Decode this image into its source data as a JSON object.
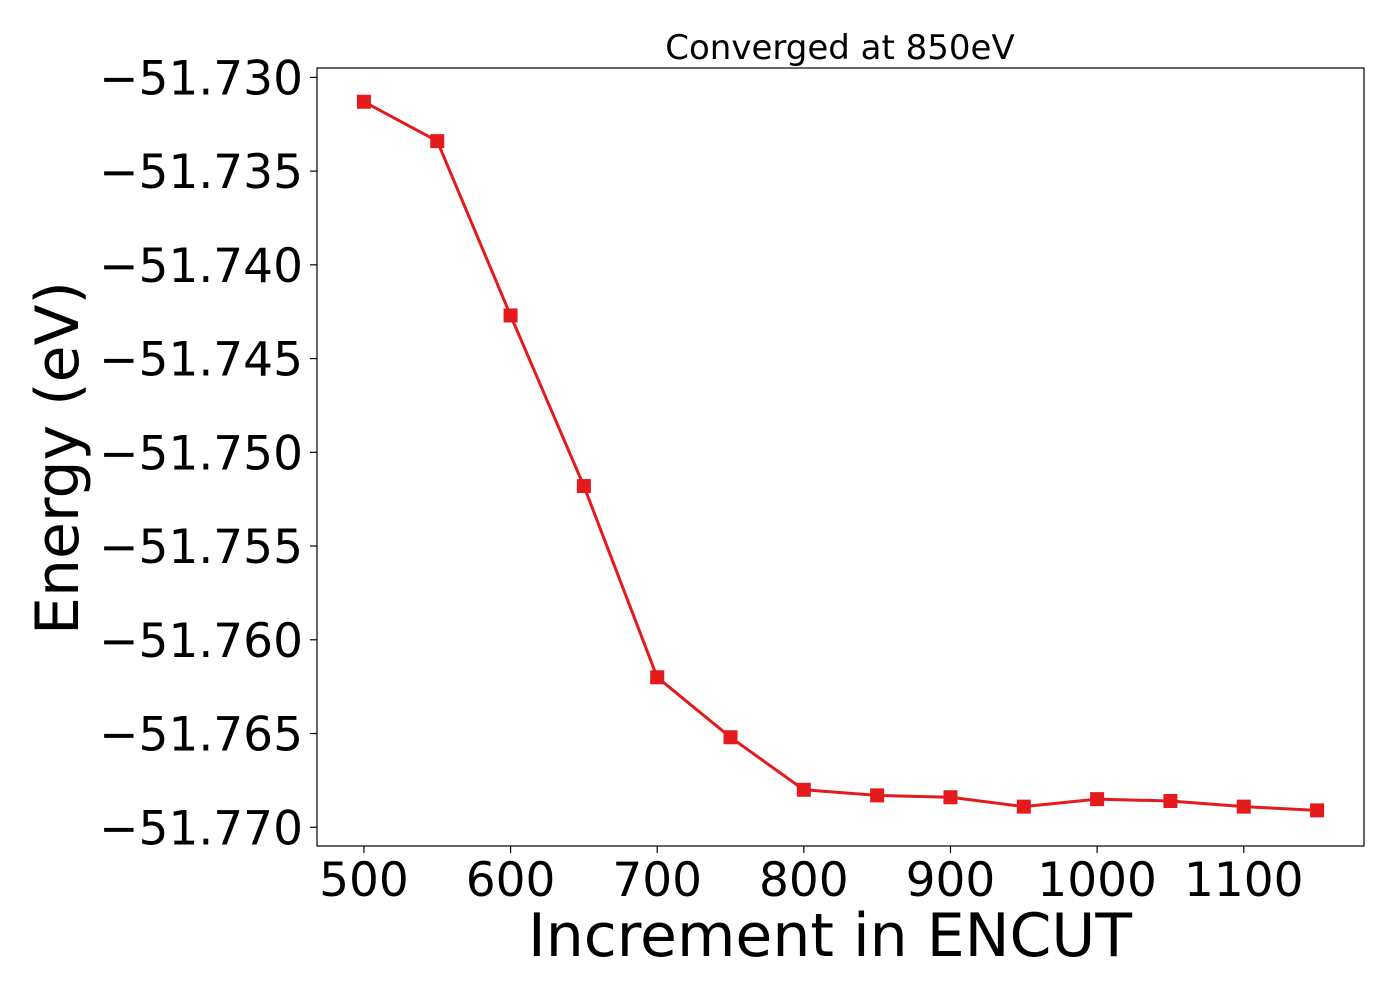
{
  "chart_data": {
    "type": "line",
    "title": "Converged at 850eV",
    "xlabel": "Increment in ENCUT",
    "ylabel": "Energy (eV)",
    "xlim": [
      468,
      1182
    ],
    "ylim": [
      -51.771,
      -51.7295
    ],
    "x_ticks": [
      500,
      600,
      700,
      800,
      900,
      1000,
      1100
    ],
    "x_tick_labels": [
      "500",
      "600",
      "700",
      "800",
      "900",
      "1000",
      "1100"
    ],
    "y_ticks": [
      -51.73,
      -51.735,
      -51.74,
      -51.745,
      -51.75,
      -51.755,
      -51.76,
      -51.765,
      -51.77
    ],
    "y_tick_labels": [
      "−51.730",
      "−51.735",
      "−51.740",
      "−51.745",
      "−51.750",
      "−51.755",
      "−51.760",
      "−51.765",
      "−51.770"
    ],
    "grid": false,
    "series": [
      {
        "color": "#e41a1c",
        "marker": "square",
        "x": [
          500,
          550,
          600,
          650,
          700,
          750,
          800,
          850,
          900,
          950,
          1000,
          1050,
          1100,
          1150
        ],
        "y": [
          -51.7313,
          -51.7334,
          -51.7427,
          -51.7518,
          -51.762,
          -51.7652,
          -51.768,
          -51.7683,
          -51.7684,
          -51.7689,
          -51.7685,
          -51.7686,
          -51.7689,
          -51.7691
        ]
      }
    ]
  }
}
